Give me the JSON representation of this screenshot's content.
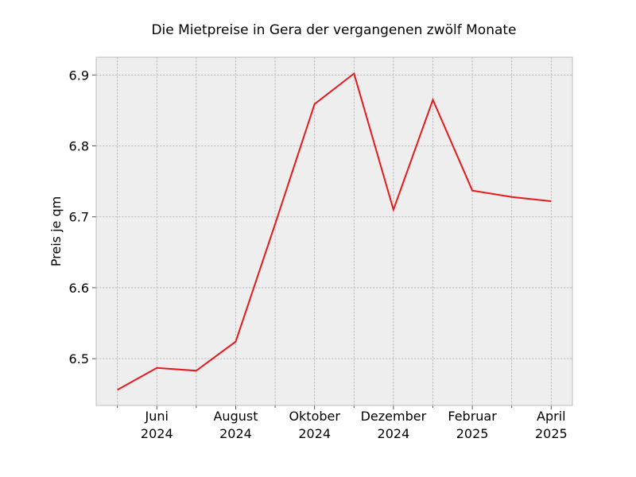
{
  "chart_data": {
    "type": "line",
    "title": "Die Mietpreise in Gera der vergangenen zwölf Monate",
    "y_label": "Preis je qm",
    "categories": [
      null,
      "Juni\n2024",
      null,
      "August\n2024",
      null,
      "Oktober\n2024",
      null,
      "Dezember\n2024",
      null,
      "Februar\n2025",
      null,
      "April\n2025"
    ],
    "series": [
      {
        "name": "Preis je qm",
        "color": "#e41a1c",
        "values": [
          6.456,
          6.487,
          6.483,
          6.524,
          6.69,
          6.859,
          6.902,
          6.71,
          6.865,
          6.737,
          6.728,
          6.722
        ]
      }
    ],
    "ylim": [
      6.434,
      6.925
    ],
    "yticks": [
      6.5,
      6.6,
      6.7,
      6.8,
      6.9
    ],
    "grid": true
  }
}
